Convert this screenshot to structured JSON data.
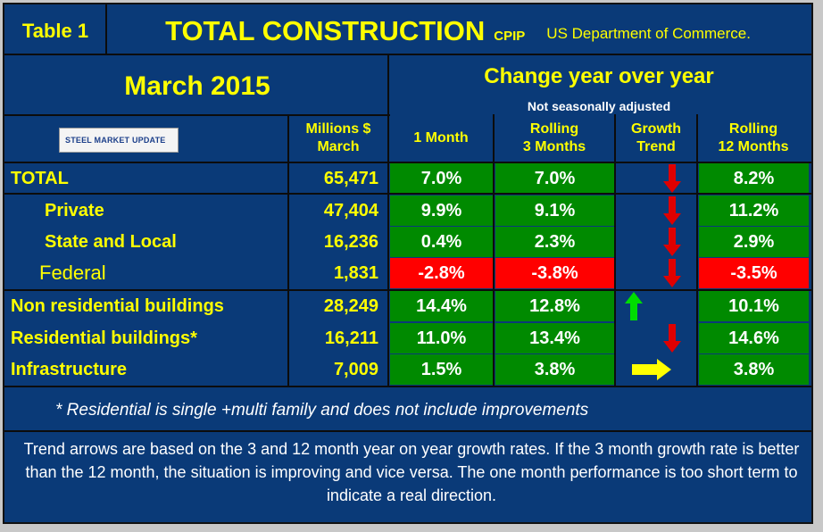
{
  "header": {
    "table_label": "Table 1",
    "title": "TOTAL CONSTRUCTION",
    "source_code": "CPIP",
    "source": "US Department of Commerce."
  },
  "period": "March 2015",
  "change_title": "Change year over year",
  "change_subtitle": "Not seasonally adjusted",
  "logo_text": "STEEL MARKET UPDATE",
  "columns": {
    "millions_line1": "Millions $",
    "millions_line2": "March",
    "one_month": "1 Month",
    "rolling3_line1": "Rolling",
    "rolling3_line2": "3 Months",
    "trend_line1": "Growth",
    "trend_line2": "Trend",
    "rolling12_line1": "Rolling",
    "rolling12_line2": "12 Months"
  },
  "rows": [
    {
      "label": "TOTAL",
      "value": "65,471",
      "m1": "7.0%",
      "m3": "7.0%",
      "trend": "down",
      "m12": "8.2%"
    },
    {
      "label": "Private",
      "value": "47,404",
      "m1": "9.9%",
      "m3": "9.1%",
      "trend": "down",
      "m12": "11.2%"
    },
    {
      "label": "State and Local",
      "value": "16,236",
      "m1": "0.4%",
      "m3": "2.3%",
      "trend": "down",
      "m12": "2.9%"
    },
    {
      "label": "Federal",
      "value": "1,831",
      "m1": "-2.8%",
      "m3": "-3.8%",
      "trend": "down",
      "m12": "-3.5%"
    },
    {
      "label": "Non residential buildings",
      "value": "28,249",
      "m1": "14.4%",
      "m3": "12.8%",
      "trend": "up",
      "m12": "10.1%"
    },
    {
      "label": "Residential buildings*",
      "value": "16,211",
      "m1": "11.0%",
      "m3": "13.4%",
      "trend": "down",
      "m12": "14.6%"
    },
    {
      "label": "Infrastructure",
      "value": "7,009",
      "m1": "1.5%",
      "m3": "3.8%",
      "trend": "right",
      "m12": "3.8%"
    }
  ],
  "colors": {
    "positive": "#008a00",
    "negative": "#ff0000",
    "down_arrow": "#e00000",
    "up_arrow": "#00dd00",
    "flat_arrow": "#ffff00"
  },
  "footnote": "* Residential is single +multi family and does not include improvements",
  "note": "Trend arrows are based on the 3 and 12 month year on year growth rates. If the 3 month growth rate is better than the 12 month, the situation is improving and vice versa. The one month performance is too short term to indicate a real direction."
}
